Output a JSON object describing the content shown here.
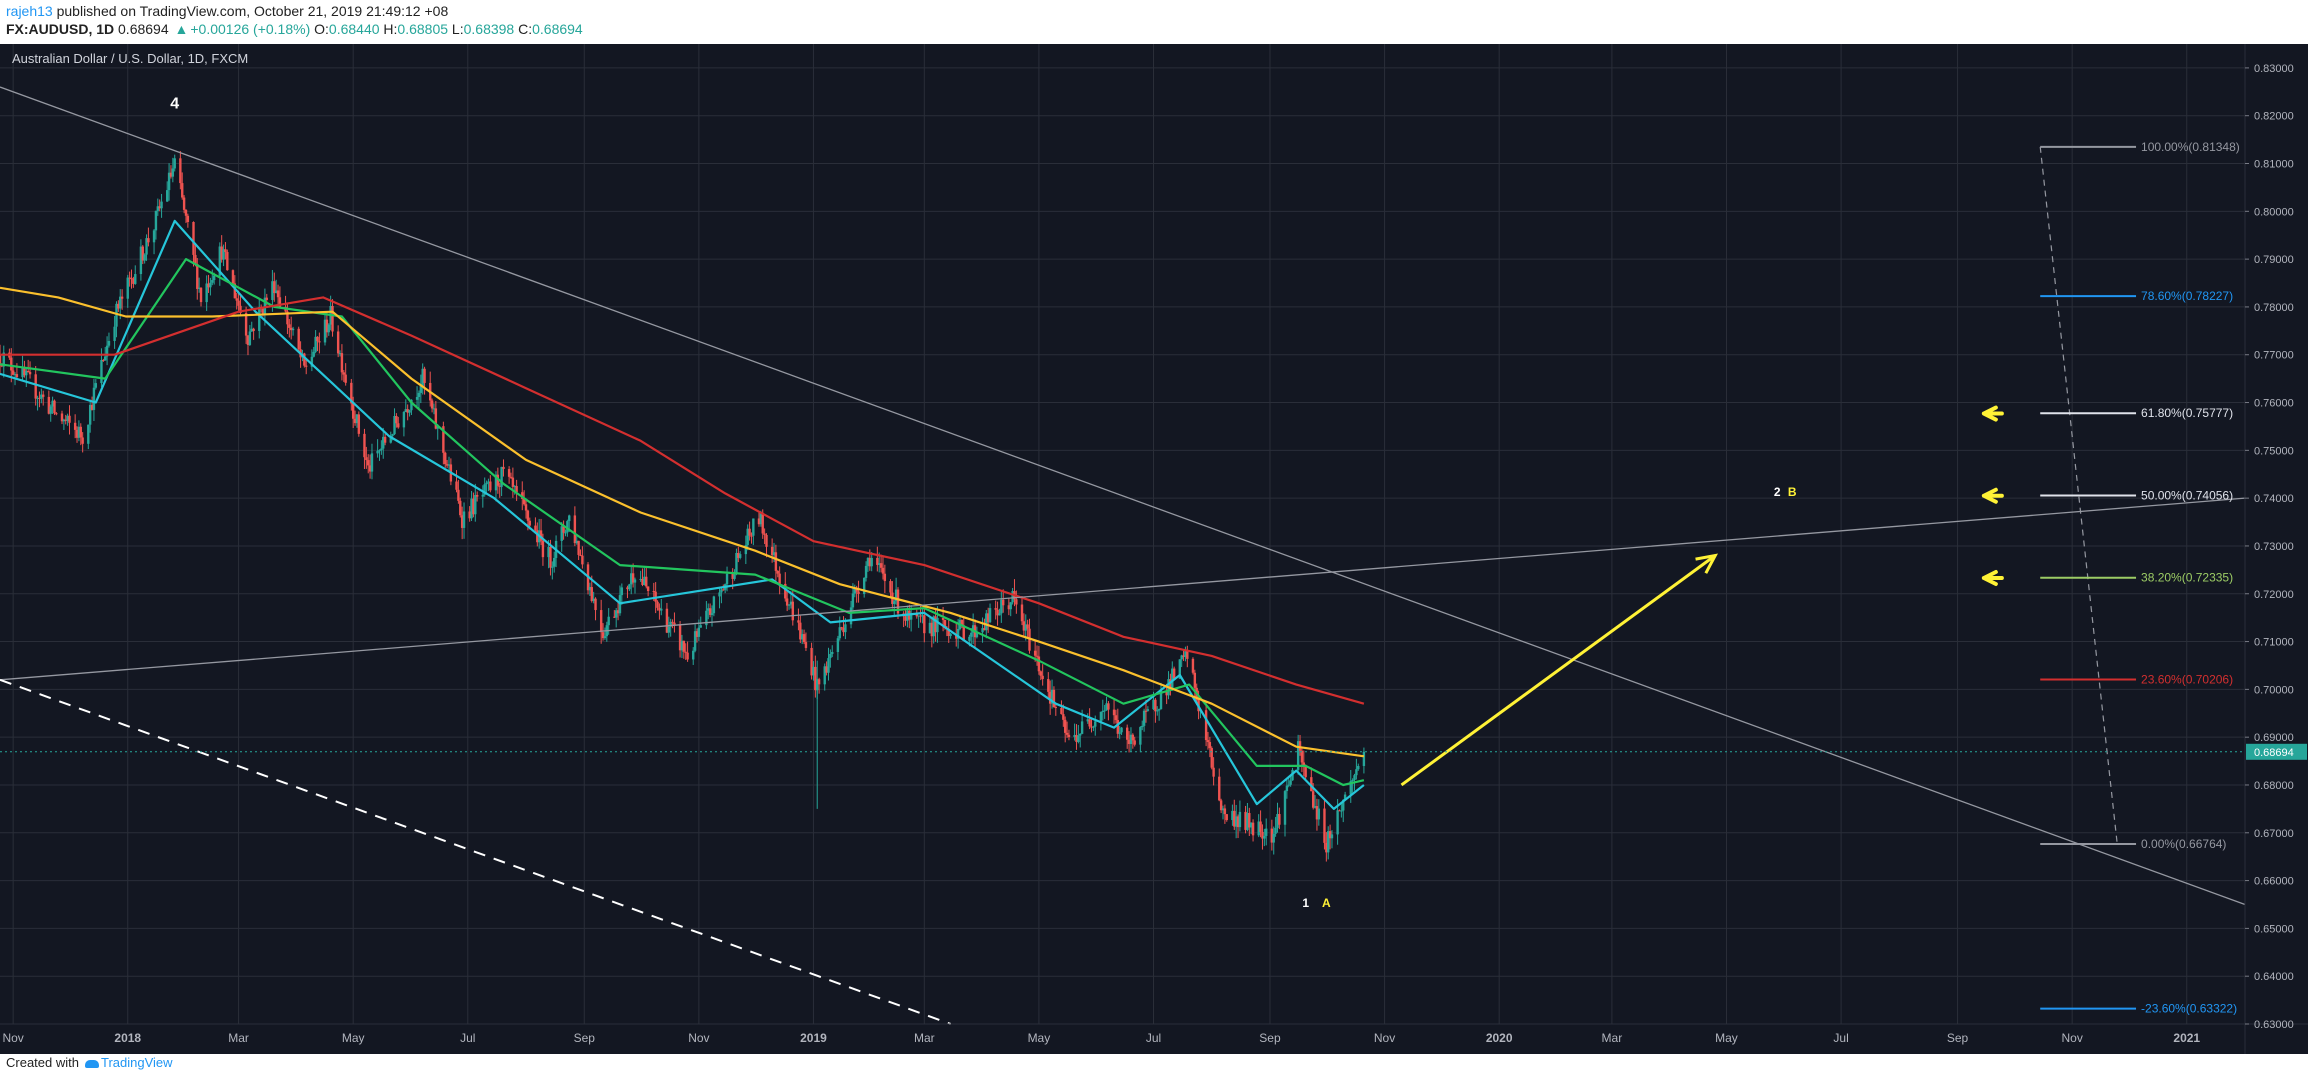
{
  "header": {
    "user": "rajeh13",
    "published": "published on TradingView.com, October 21, 2019 21:49:12 +08",
    "symbol": "FX:AUDUSD, 1D",
    "last": "0.68694",
    "change": "+0.00126 (+0.18%)",
    "o_label": "O:",
    "o_val": "0.68440",
    "h_label": "H:",
    "h_val": "0.68805",
    "l_label": "L:",
    "l_val": "0.68398",
    "c_label": "C:",
    "c_val": "0.68694"
  },
  "footer": {
    "created": "Created with",
    "brand": "TradingView"
  },
  "colors": {
    "background": "#131722",
    "grid": "#2a2e39",
    "up": "#26a69a",
    "down": "#ef5350",
    "ma_fast": "#26c6da",
    "ma_mid": "#22c55e",
    "ma_slow": "#fbc02d",
    "ma_long": "#d32f2f",
    "trend": "#9598a1",
    "arrow": "#fff236"
  },
  "chart_data": {
    "type": "candlestick",
    "title": "Australian Dollar / U.S. Dollar, 1D, FXCM",
    "price_axis": {
      "ylim": [
        0.63,
        0.835
      ],
      "ticks": [
        "0.83000",
        "0.82000",
        "0.81000",
        "0.80000",
        "0.79000",
        "0.78000",
        "0.77000",
        "0.76000",
        "0.75000",
        "0.74000",
        "0.73000",
        "0.72000",
        "0.71000",
        "0.70000",
        "0.69000",
        "0.68000",
        "0.67000",
        "0.66000",
        "0.65000",
        "0.64000",
        "0.63000"
      ],
      "last_price_label": "0.68694"
    },
    "time_axis": {
      "range": [
        "2017-10-25",
        "2021-02-01"
      ],
      "ticks": [
        {
          "date": "2017-11-01",
          "label": "Nov"
        },
        {
          "date": "2018-01-01",
          "label": "2018"
        },
        {
          "date": "2018-03-01",
          "label": "Mar"
        },
        {
          "date": "2018-05-01",
          "label": "May"
        },
        {
          "date": "2018-07-01",
          "label": "Jul"
        },
        {
          "date": "2018-09-01",
          "label": "Sep"
        },
        {
          "date": "2018-11-01",
          "label": "Nov"
        },
        {
          "date": "2019-01-01",
          "label": "2019"
        },
        {
          "date": "2019-03-01",
          "label": "Mar"
        },
        {
          "date": "2019-05-01",
          "label": "May"
        },
        {
          "date": "2019-07-01",
          "label": "Jul"
        },
        {
          "date": "2019-09-01",
          "label": "Sep"
        },
        {
          "date": "2019-11-01",
          "label": "Nov"
        },
        {
          "date": "2020-01-01",
          "label": "2020"
        },
        {
          "date": "2020-03-01",
          "label": "Mar"
        },
        {
          "date": "2020-05-01",
          "label": "May"
        },
        {
          "date": "2020-07-01",
          "label": "Jul"
        },
        {
          "date": "2020-09-01",
          "label": "Sep"
        },
        {
          "date": "2020-11-01",
          "label": "Nov"
        },
        {
          "date": "2021-01-01",
          "label": "2021"
        }
      ]
    },
    "price_path": [
      [
        "2017-10-25",
        0.77
      ],
      [
        "2017-11-10",
        0.764
      ],
      [
        "2017-11-25",
        0.757
      ],
      [
        "2017-12-08",
        0.753
      ],
      [
        "2017-12-25",
        0.778
      ],
      [
        "2018-01-15",
        0.797
      ],
      [
        "2018-01-26",
        0.81
      ],
      [
        "2018-02-09",
        0.782
      ],
      [
        "2018-02-20",
        0.792
      ],
      [
        "2018-03-06",
        0.774
      ],
      [
        "2018-03-20",
        0.785
      ],
      [
        "2018-04-05",
        0.767
      ],
      [
        "2018-04-19",
        0.778
      ],
      [
        "2018-05-09",
        0.746
      ],
      [
        "2018-05-29",
        0.759
      ],
      [
        "2018-06-07",
        0.765
      ],
      [
        "2018-06-28",
        0.736
      ],
      [
        "2018-07-20",
        0.745
      ],
      [
        "2018-08-14",
        0.727
      ],
      [
        "2018-08-24",
        0.736
      ],
      [
        "2018-09-11",
        0.712
      ],
      [
        "2018-09-28",
        0.725
      ],
      [
        "2018-10-26",
        0.707
      ],
      [
        "2018-12-03",
        0.736
      ],
      [
        "2018-12-31",
        0.705
      ],
      [
        "2019-01-03",
        0.7
      ],
      [
        "2019-01-31",
        0.728
      ],
      [
        "2019-02-21",
        0.714
      ],
      [
        "2019-03-27",
        0.712
      ],
      [
        "2019-04-17",
        0.719
      ],
      [
        "2019-05-17",
        0.689
      ],
      [
        "2019-06-06",
        0.697
      ],
      [
        "2019-06-17",
        0.688
      ],
      [
        "2019-07-19",
        0.707
      ],
      [
        "2019-08-07",
        0.674
      ],
      [
        "2019-09-03",
        0.67
      ],
      [
        "2019-09-16",
        0.687
      ],
      [
        "2019-10-01",
        0.668
      ],
      [
        "2019-10-21",
        0.68694
      ]
    ],
    "spikes": [
      {
        "date": "2019-01-03",
        "low": 0.675,
        "high": 0.706
      }
    ],
    "moving_averages": [
      {
        "color_key": "ma_fast",
        "points": [
          [
            "2017-10-25",
            0.766
          ],
          [
            "2017-12-15",
            0.76
          ],
          [
            "2018-01-26",
            0.798
          ],
          [
            "2018-03-10",
            0.779
          ],
          [
            "2018-05-20",
            0.753
          ],
          [
            "2018-07-15",
            0.74
          ],
          [
            "2018-09-20",
            0.718
          ],
          [
            "2018-12-10",
            0.723
          ],
          [
            "2019-01-10",
            0.714
          ],
          [
            "2019-03-01",
            0.716
          ],
          [
            "2019-05-10",
            0.697
          ],
          [
            "2019-06-10",
            0.692
          ],
          [
            "2019-07-15",
            0.703
          ],
          [
            "2019-08-25",
            0.676
          ],
          [
            "2019-09-15",
            0.683
          ],
          [
            "2019-10-05",
            0.675
          ],
          [
            "2019-10-21",
            0.68
          ]
        ]
      },
      {
        "color_key": "ma_mid",
        "points": [
          [
            "2017-10-25",
            0.768
          ],
          [
            "2017-12-20",
            0.765
          ],
          [
            "2018-02-01",
            0.79
          ],
          [
            "2018-03-20",
            0.78
          ],
          [
            "2018-04-25",
            0.778
          ],
          [
            "2018-06-01",
            0.76
          ],
          [
            "2018-07-20",
            0.743
          ],
          [
            "2018-09-20",
            0.726
          ],
          [
            "2018-12-01",
            0.724
          ],
          [
            "2019-01-20",
            0.716
          ],
          [
            "2019-03-01",
            0.717
          ],
          [
            "2019-05-01",
            0.706
          ],
          [
            "2019-06-15",
            0.697
          ],
          [
            "2019-07-20",
            0.701
          ],
          [
            "2019-08-25",
            0.684
          ],
          [
            "2019-09-20",
            0.684
          ],
          [
            "2019-10-10",
            0.68
          ],
          [
            "2019-10-21",
            0.681
          ]
        ]
      },
      {
        "color_key": "ma_slow",
        "points": [
          [
            "2017-10-25",
            0.784
          ],
          [
            "2017-11-25",
            0.782
          ],
          [
            "2017-12-31",
            0.778
          ],
          [
            "2018-02-15",
            0.778
          ],
          [
            "2018-04-20",
            0.779
          ],
          [
            "2018-06-01",
            0.765
          ],
          [
            "2018-08-01",
            0.748
          ],
          [
            "2018-10-01",
            0.737
          ],
          [
            "2018-12-01",
            0.729
          ],
          [
            "2019-01-15",
            0.722
          ],
          [
            "2019-03-15",
            0.716
          ],
          [
            "2019-05-01",
            0.71
          ],
          [
            "2019-06-15",
            0.704
          ],
          [
            "2019-08-01",
            0.697
          ],
          [
            "2019-09-15",
            0.688
          ],
          [
            "2019-10-21",
            0.686
          ]
        ]
      },
      {
        "color_key": "ma_long",
        "points": [
          [
            "2017-10-25",
            0.77
          ],
          [
            "2017-12-25",
            0.77
          ],
          [
            "2018-03-01",
            0.779
          ],
          [
            "2018-04-15",
            0.782
          ],
          [
            "2018-06-01",
            0.774
          ],
          [
            "2018-08-01",
            0.763
          ],
          [
            "2018-10-01",
            0.752
          ],
          [
            "2018-11-15",
            0.741
          ],
          [
            "2019-01-01",
            0.731
          ],
          [
            "2019-03-01",
            0.726
          ],
          [
            "2019-05-01",
            0.718
          ],
          [
            "2019-06-15",
            0.711
          ],
          [
            "2019-08-01",
            0.707
          ],
          [
            "2019-09-15",
            0.701
          ],
          [
            "2019-10-21",
            0.697
          ]
        ]
      }
    ],
    "trendlines": [
      {
        "style": "solid",
        "from": [
          "2017-10-25",
          0.826
        ],
        "to": [
          "2021-02-01",
          0.655
        ]
      },
      {
        "style": "solid",
        "from": [
          "2017-10-25",
          0.702
        ],
        "to": [
          "2021-02-01",
          0.74
        ]
      },
      {
        "style": "dashed",
        "from": [
          "2017-10-25",
          0.702
        ],
        "to": [
          "2019-03-15",
          0.63
        ]
      }
    ],
    "forecast_arrow": {
      "from": [
        "2019-11-10",
        0.68
      ],
      "to": [
        "2020-04-25",
        0.728
      ]
    },
    "fibonacci": {
      "range": [
        "2020-10-15",
        "2020-12-05"
      ],
      "swing_from": [
        "2020-10-15",
        0.81348
      ],
      "swing_to": [
        "2020-11-25",
        0.66764
      ],
      "levels": [
        {
          "label": "100.00%(0.81348)",
          "price": 0.81348,
          "color": "#9598a1"
        },
        {
          "label": "78.60%(0.78227)",
          "price": 0.78227,
          "color": "#2196f3"
        },
        {
          "label": "61.80%(0.75777)",
          "price": 0.75777,
          "color": "#e0e3eb"
        },
        {
          "label": "50.00%(0.74056)",
          "price": 0.74056,
          "color": "#e0e3eb"
        },
        {
          "label": "38.20%(0.72335)",
          "price": 0.72335,
          "color": "#9ccc65"
        },
        {
          "label": "23.60%(0.70206)",
          "price": 0.70206,
          "color": "#d32f2f"
        },
        {
          "label": "0.00%(0.66764)",
          "price": 0.66764,
          "color": "#9598a1"
        },
        {
          "label": "-23.60%(0.63322)",
          "price": 0.63322,
          "color": "#2196f3"
        }
      ]
    },
    "level_arrows": [
      {
        "date": "2020-09-15",
        "price": 0.7577
      },
      {
        "date": "2020-09-15",
        "price": 0.7405
      },
      {
        "date": "2020-09-15",
        "price": 0.7233
      }
    ],
    "annotations": [
      {
        "text": "4",
        "date": "2018-01-26",
        "price": 0.8215,
        "color": "#ffffff",
        "size": 16
      },
      {
        "text": "2",
        "date": "2020-05-28",
        "price": 0.7405,
        "color": "#ffffff",
        "size": 12
      },
      {
        "text": "B",
        "date": "2020-06-05",
        "price": 0.7405,
        "color": "#fff236",
        "size": 12
      },
      {
        "text": "1",
        "date": "2019-09-20",
        "price": 0.6545,
        "color": "#ffffff",
        "size": 12
      },
      {
        "text": "A",
        "date": "2019-10-01",
        "price": 0.6545,
        "color": "#fff236",
        "size": 12
      }
    ]
  }
}
